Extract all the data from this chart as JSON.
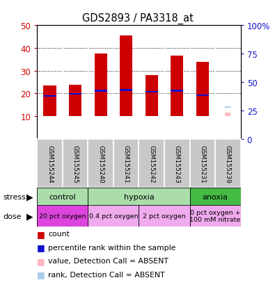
{
  "title": "GDS2893 / PA3318_at",
  "samples": [
    "GSM155244",
    "GSM155245",
    "GSM155240",
    "GSM155241",
    "GSM155242",
    "GSM155243",
    "GSM155231",
    "GSM155239"
  ],
  "counts": [
    23.5,
    23.8,
    37.5,
    45.5,
    28.0,
    36.5,
    34.0,
    null
  ],
  "ranks": [
    19.0,
    19.8,
    21.2,
    21.5,
    20.8,
    21.2,
    19.2,
    null
  ],
  "gsm155239_absent_value": 11.5,
  "gsm155239_absent_rank": 14.0,
  "ylim_left": [
    0,
    50
  ],
  "yticks_left": [
    10,
    20,
    30,
    40,
    50
  ],
  "ytick_labels_left": [
    "10",
    "20",
    "30",
    "40",
    "50"
  ],
  "yticks_right": [
    0,
    25,
    50,
    75,
    100
  ],
  "ytick_labels_right": [
    "0",
    "25",
    "50",
    "75",
    "100%"
  ],
  "count_color": "#cc0000",
  "rank_color": "#1111cc",
  "absent_value_color": "#ffb6c1",
  "absent_rank_color": "#aaccee",
  "label_color_left": "#cc0000",
  "label_color_right": "#1111cc",
  "sample_box_color": "#c8c8c8",
  "stress_groups": [
    {
      "label": "control",
      "start": 0,
      "end": 2,
      "color": "#aaddaa"
    },
    {
      "label": "hypoxia",
      "start": 2,
      "end": 6,
      "color": "#aaddaa"
    },
    {
      "label": "anoxia",
      "start": 6,
      "end": 8,
      "color": "#44bb44"
    }
  ],
  "dose_groups": [
    {
      "label": "20 pct oxygen",
      "start": 0,
      "end": 2,
      "color": "#dd44dd"
    },
    {
      "label": "0.4 pct oxygen",
      "start": 2,
      "end": 4,
      "color": "#f0aaee"
    },
    {
      "label": "2 pct oxygen",
      "start": 4,
      "end": 6,
      "color": "#f0aaee"
    },
    {
      "label": "0 pct oxygen +\n100 mM nitrate",
      "start": 6,
      "end": 8,
      "color": "#f0aaee"
    }
  ],
  "legend_items": [
    {
      "color": "#cc0000",
      "label": "count"
    },
    {
      "color": "#1111cc",
      "label": "percentile rank within the sample"
    },
    {
      "color": "#ffb6c1",
      "label": "value, Detection Call = ABSENT"
    },
    {
      "color": "#aaccee",
      "label": "rank, Detection Call = ABSENT"
    }
  ]
}
